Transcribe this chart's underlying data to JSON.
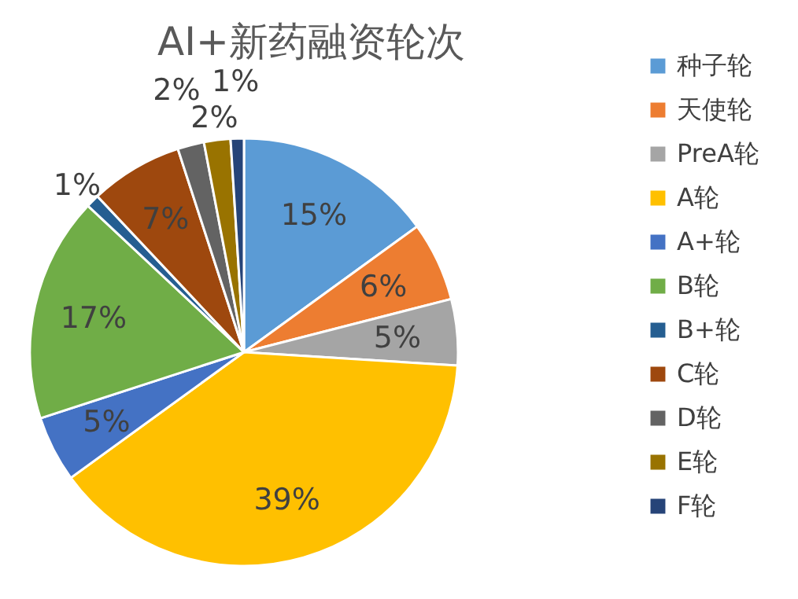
{
  "chart_data": {
    "type": "pie",
    "title": "AI+新药融资轮次",
    "categories": [
      "种子轮",
      "天使轮",
      "PreA轮",
      "A轮",
      "A+轮",
      "B轮",
      "B+轮",
      "C轮",
      "D轮",
      "E轮",
      "F轮"
    ],
    "values": [
      15,
      6,
      5,
      39,
      5,
      17,
      1,
      7,
      2,
      2,
      1
    ],
    "colors": [
      "#5b9bd5",
      "#ed7d31",
      "#a5a5a5",
      "#ffc000",
      "#4472c4",
      "#70ad47",
      "#255e91",
      "#9e480e",
      "#636363",
      "#997300",
      "#264478"
    ],
    "value_labels": [
      "15%",
      "6%",
      "5%",
      "39%",
      "5%",
      "17%",
      "1%",
      "7%",
      "2%",
      "2%",
      "1%"
    ],
    "legend": "right"
  }
}
